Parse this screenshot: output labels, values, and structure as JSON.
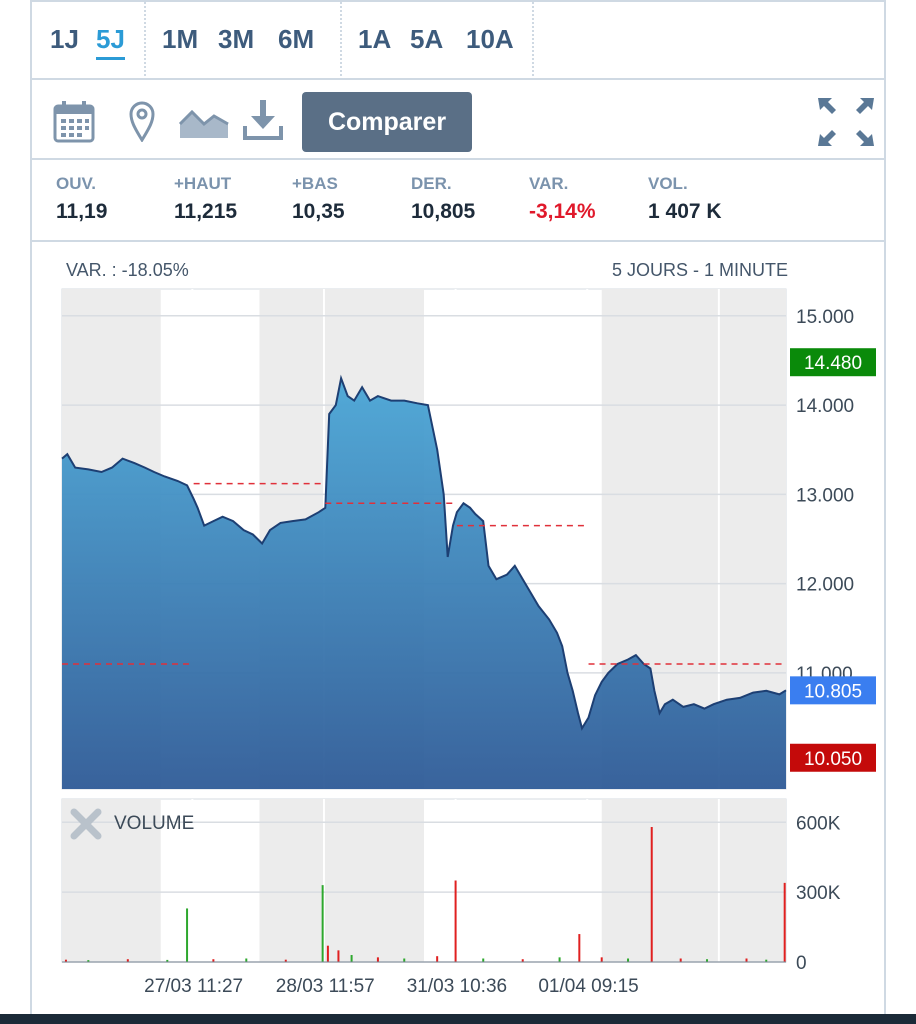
{
  "periods": {
    "group1": [
      "1J",
      "5J"
    ],
    "group2": [
      "1M",
      "3M",
      "6M"
    ],
    "group3": [
      "1A",
      "5A",
      "10A"
    ],
    "active": "5J"
  },
  "toolbar": {
    "compare_label": "Comparer"
  },
  "stats": [
    {
      "label": "OUV.",
      "value": "11,19",
      "negative": false
    },
    {
      "label": "+HAUT",
      "value": "11,215",
      "negative": false
    },
    {
      "label": "+BAS",
      "value": "10,35",
      "negative": false
    },
    {
      "label": "DER.",
      "value": "10,805",
      "negative": false
    },
    {
      "label": "VAR.",
      "value": "-3,14%",
      "negative": true
    },
    {
      "label": "VOL.",
      "value": "1 407 K",
      "negative": false
    }
  ],
  "chart_data": {
    "type": "area",
    "header_left": "VAR. : -18.05%",
    "header_right": "5 JOURS - 1 MINUTE",
    "ylim": [
      9.7,
      15.3
    ],
    "y_ticks": [
      "15.000",
      "14.000",
      "13.000",
      "12.000",
      "11.000"
    ],
    "y_tick_values": [
      15,
      14,
      13,
      12,
      11
    ],
    "markers": [
      {
        "label": "14.480",
        "value": 14.48,
        "color": "#0a8a0a"
      },
      {
        "label": "10.805",
        "value": 10.805,
        "color": "#3a7ef0"
      },
      {
        "label": "10.050",
        "value": 10.05,
        "color": "#c40a0a"
      }
    ],
    "x_labels": [
      "27/03 11:27",
      "28/03 11:57",
      "31/03 10:36",
      "01/04 09:15"
    ],
    "previous_close_lines": [
      {
        "day": 1,
        "value": 11.1
      },
      {
        "day": 2,
        "value": 13.12
      },
      {
        "day": 3,
        "value": 12.9
      },
      {
        "day": 4,
        "value": 12.65
      },
      {
        "day": 5,
        "value": 11.1
      }
    ],
    "price_series": [
      [
        0,
        13.4
      ],
      [
        0.04,
        13.45
      ],
      [
        0.1,
        13.3
      ],
      [
        0.2,
        13.28
      ],
      [
        0.3,
        13.25
      ],
      [
        0.38,
        13.3
      ],
      [
        0.46,
        13.4
      ],
      [
        0.55,
        13.35
      ],
      [
        0.63,
        13.3
      ],
      [
        0.7,
        13.25
      ],
      [
        0.78,
        13.2
      ],
      [
        0.88,
        13.15
      ],
      [
        0.95,
        13.1
      ],
      [
        1.0,
        12.95
      ],
      [
        1.03,
        12.85
      ],
      [
        1.08,
        12.65
      ],
      [
        1.15,
        12.7
      ],
      [
        1.22,
        12.75
      ],
      [
        1.3,
        12.7
      ],
      [
        1.38,
        12.6
      ],
      [
        1.45,
        12.55
      ],
      [
        1.52,
        12.45
      ],
      [
        1.58,
        12.6
      ],
      [
        1.66,
        12.68
      ],
      [
        1.75,
        12.7
      ],
      [
        1.85,
        12.72
      ],
      [
        1.95,
        12.8
      ],
      [
        2.0,
        12.85
      ],
      [
        2.03,
        13.9
      ],
      [
        2.08,
        14.0
      ],
      [
        2.12,
        14.3
      ],
      [
        2.17,
        14.1
      ],
      [
        2.22,
        14.05
      ],
      [
        2.28,
        14.2
      ],
      [
        2.34,
        14.05
      ],
      [
        2.4,
        14.1
      ],
      [
        2.5,
        14.05
      ],
      [
        2.6,
        14.05
      ],
      [
        2.7,
        14.02
      ],
      [
        2.78,
        14.0
      ],
      [
        2.85,
        13.5
      ],
      [
        2.9,
        13.0
      ],
      [
        2.93,
        12.3
      ],
      [
        2.97,
        12.65
      ],
      [
        3.0,
        12.8
      ],
      [
        3.05,
        12.9
      ],
      [
        3.1,
        12.85
      ],
      [
        3.14,
        12.78
      ],
      [
        3.2,
        12.7
      ],
      [
        3.24,
        12.2
      ],
      [
        3.3,
        12.05
      ],
      [
        3.38,
        12.1
      ],
      [
        3.44,
        12.2
      ],
      [
        3.5,
        12.05
      ],
      [
        3.56,
        11.9
      ],
      [
        3.62,
        11.75
      ],
      [
        3.7,
        11.6
      ],
      [
        3.76,
        11.45
      ],
      [
        3.8,
        11.3
      ],
      [
        3.84,
        11.0
      ],
      [
        3.88,
        10.8
      ],
      [
        3.92,
        10.55
      ],
      [
        3.95,
        10.38
      ],
      [
        4.0,
        10.5
      ],
      [
        4.05,
        10.75
      ],
      [
        4.1,
        10.9
      ],
      [
        4.15,
        11.0
      ],
      [
        4.22,
        11.1
      ],
      [
        4.3,
        11.15
      ],
      [
        4.36,
        11.2
      ],
      [
        4.42,
        11.1
      ],
      [
        4.47,
        11.05
      ],
      [
        4.5,
        10.8
      ],
      [
        4.54,
        10.55
      ],
      [
        4.58,
        10.65
      ],
      [
        4.64,
        10.7
      ],
      [
        4.72,
        10.62
      ],
      [
        4.8,
        10.65
      ],
      [
        4.88,
        10.6
      ],
      [
        4.95,
        10.65
      ],
      [
        5.05,
        10.7
      ],
      [
        5.15,
        10.72
      ],
      [
        5.25,
        10.78
      ],
      [
        5.35,
        10.8
      ],
      [
        5.45,
        10.76
      ],
      [
        5.5,
        10.805
      ]
    ],
    "volume": {
      "label": "VOLUME",
      "ylim": [
        0,
        700000
      ],
      "y_ticks": [
        "600K",
        "300K",
        "0"
      ],
      "y_tick_values": [
        600000,
        300000,
        0
      ],
      "bars": [
        {
          "t": 0.03,
          "v": 10000,
          "up": false
        },
        {
          "t": 0.2,
          "v": 8000,
          "up": true
        },
        {
          "t": 0.5,
          "v": 12000,
          "up": false
        },
        {
          "t": 0.8,
          "v": 9000,
          "up": true
        },
        {
          "t": 0.95,
          "v": 230000,
          "up": true
        },
        {
          "t": 1.15,
          "v": 12000,
          "up": false
        },
        {
          "t": 1.4,
          "v": 15000,
          "up": true
        },
        {
          "t": 1.7,
          "v": 10000,
          "up": false
        },
        {
          "t": 1.98,
          "v": 330000,
          "up": true
        },
        {
          "t": 2.02,
          "v": 70000,
          "up": false
        },
        {
          "t": 2.1,
          "v": 50000,
          "up": false
        },
        {
          "t": 2.2,
          "v": 30000,
          "up": true
        },
        {
          "t": 2.4,
          "v": 20000,
          "up": false
        },
        {
          "t": 2.6,
          "v": 15000,
          "up": true
        },
        {
          "t": 2.85,
          "v": 25000,
          "up": false
        },
        {
          "t": 2.99,
          "v": 350000,
          "up": false
        },
        {
          "t": 3.2,
          "v": 15000,
          "up": true
        },
        {
          "t": 3.5,
          "v": 12000,
          "up": false
        },
        {
          "t": 3.78,
          "v": 20000,
          "up": true
        },
        {
          "t": 3.93,
          "v": 120000,
          "up": false
        },
        {
          "t": 4.1,
          "v": 20000,
          "up": false
        },
        {
          "t": 4.3,
          "v": 15000,
          "up": true
        },
        {
          "t": 4.48,
          "v": 580000,
          "up": false
        },
        {
          "t": 4.7,
          "v": 15000,
          "up": false
        },
        {
          "t": 4.9,
          "v": 12000,
          "up": true
        },
        {
          "t": 5.2,
          "v": 15000,
          "up": false
        },
        {
          "t": 5.35,
          "v": 10000,
          "up": true
        },
        {
          "t": 5.49,
          "v": 340000,
          "up": false
        }
      ]
    }
  }
}
